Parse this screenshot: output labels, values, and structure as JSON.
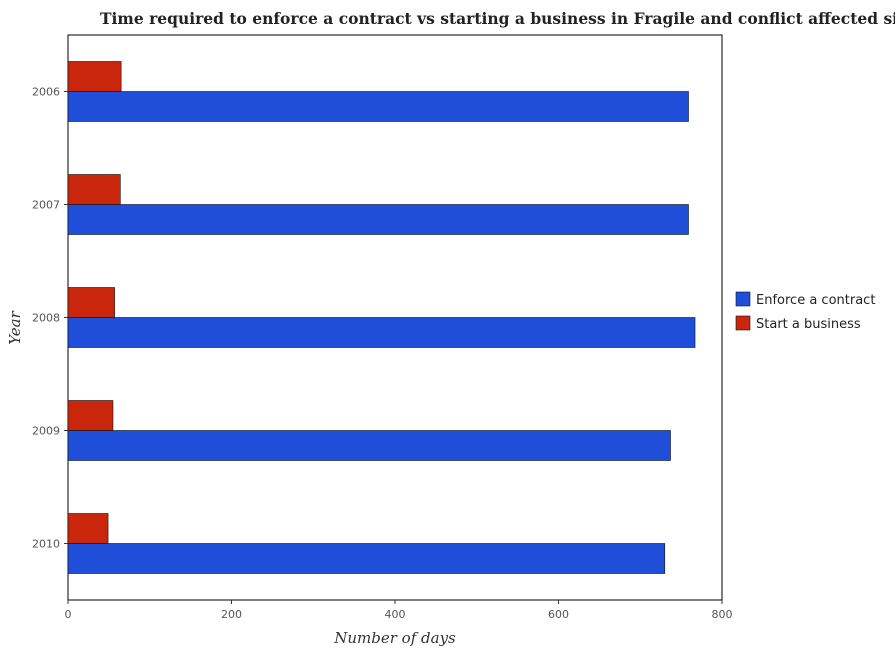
{
  "chart_data": {
    "type": "bar",
    "orientation": "horizontal",
    "title": "Time required to enforce a contract vs starting a business in Fragile and conflict affected situations",
    "xlabel": "Number of days",
    "ylabel": "Year",
    "categories": [
      "2006",
      "2007",
      "2008",
      "2009",
      "2010"
    ],
    "series": [
      {
        "name": "Enforce a contract",
        "color": "#1f4fd8",
        "values": [
          759,
          759,
          767,
          737,
          730
        ]
      },
      {
        "name": "Start a business",
        "color": "#c9260c",
        "values": [
          65,
          64,
          57,
          55,
          49
        ]
      }
    ],
    "xlim": [
      0,
      800
    ],
    "xticks": [
      0,
      200,
      400,
      600,
      800
    ],
    "grid": false,
    "legend": "right"
  }
}
